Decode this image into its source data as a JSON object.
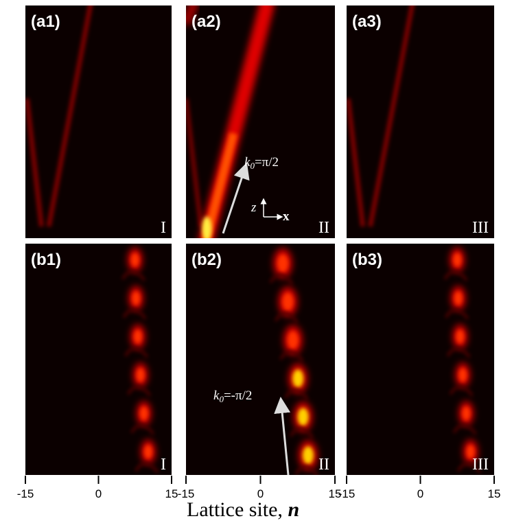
{
  "chart_data": {
    "type": "heatmap",
    "xlabel": "Lattice site, ",
    "xlabel_var": "n",
    "xlim": [
      -15,
      15
    ],
    "x_ticks": [
      "-15",
      "0",
      "15"
    ],
    "colormap": [
      "#000000",
      "#3a0000",
      "#c00000",
      "#ff2a00",
      "#ffdd00",
      "#ffff80"
    ],
    "panels": [
      {
        "label": "(a1)",
        "regime": "I"
      },
      {
        "label": "(a2)",
        "regime": "II",
        "annotation": {
          "k": "k",
          "sub": "0",
          "rest": "=π/2"
        },
        "axes_indicator": {
          "z": "z",
          "x": "x"
        }
      },
      {
        "label": "(a3)",
        "regime": "III"
      },
      {
        "label": "(b1)",
        "regime": "I"
      },
      {
        "label": "(b2)",
        "regime": "II",
        "annotation": {
          "k": "k",
          "sub": "0",
          "rest": "=-π/2"
        }
      },
      {
        "label": "(b3)",
        "regime": "III"
      }
    ]
  }
}
